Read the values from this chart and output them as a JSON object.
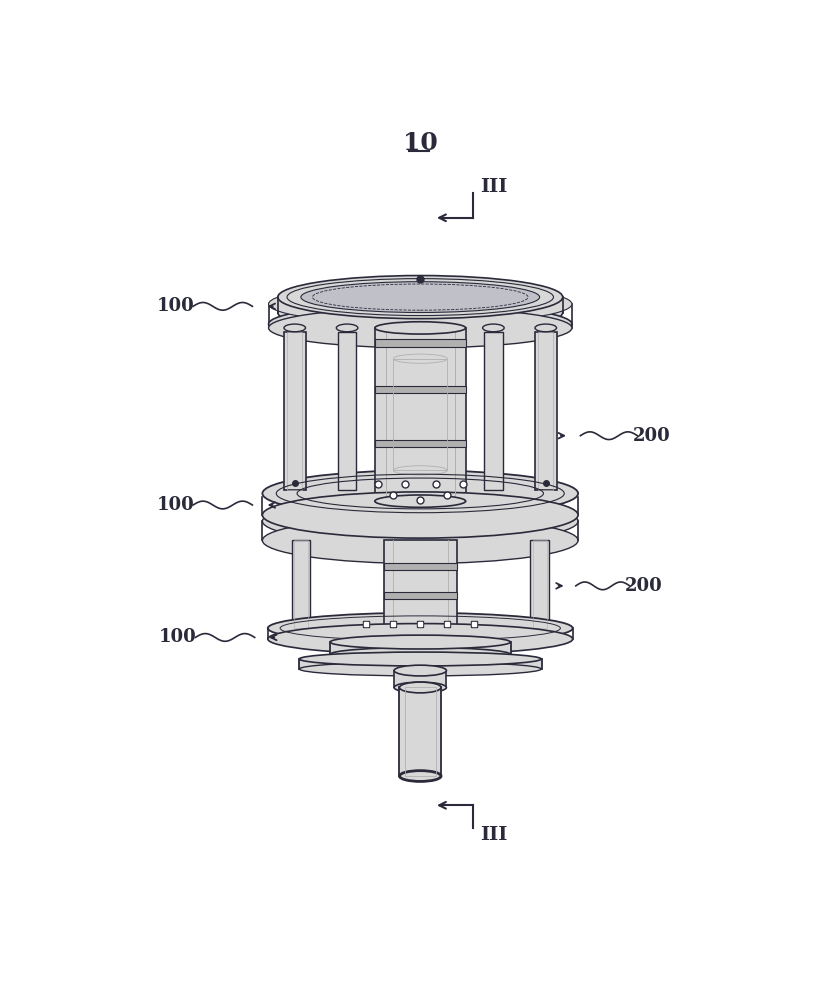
{
  "title": "10",
  "label_III_top": "III",
  "label_III_bot": "III",
  "label_100_top": "100",
  "label_100_mid": "100",
  "label_100_bot": "100",
  "label_200_top": "200",
  "label_200_bot": "200",
  "bg_color": "#ffffff",
  "line_color": "#2a2a3a",
  "light_gray": "#d8d8d8",
  "mid_gray": "#b0b0b0",
  "dark_gray": "#707070",
  "shadow_color": "#c0c0c8"
}
